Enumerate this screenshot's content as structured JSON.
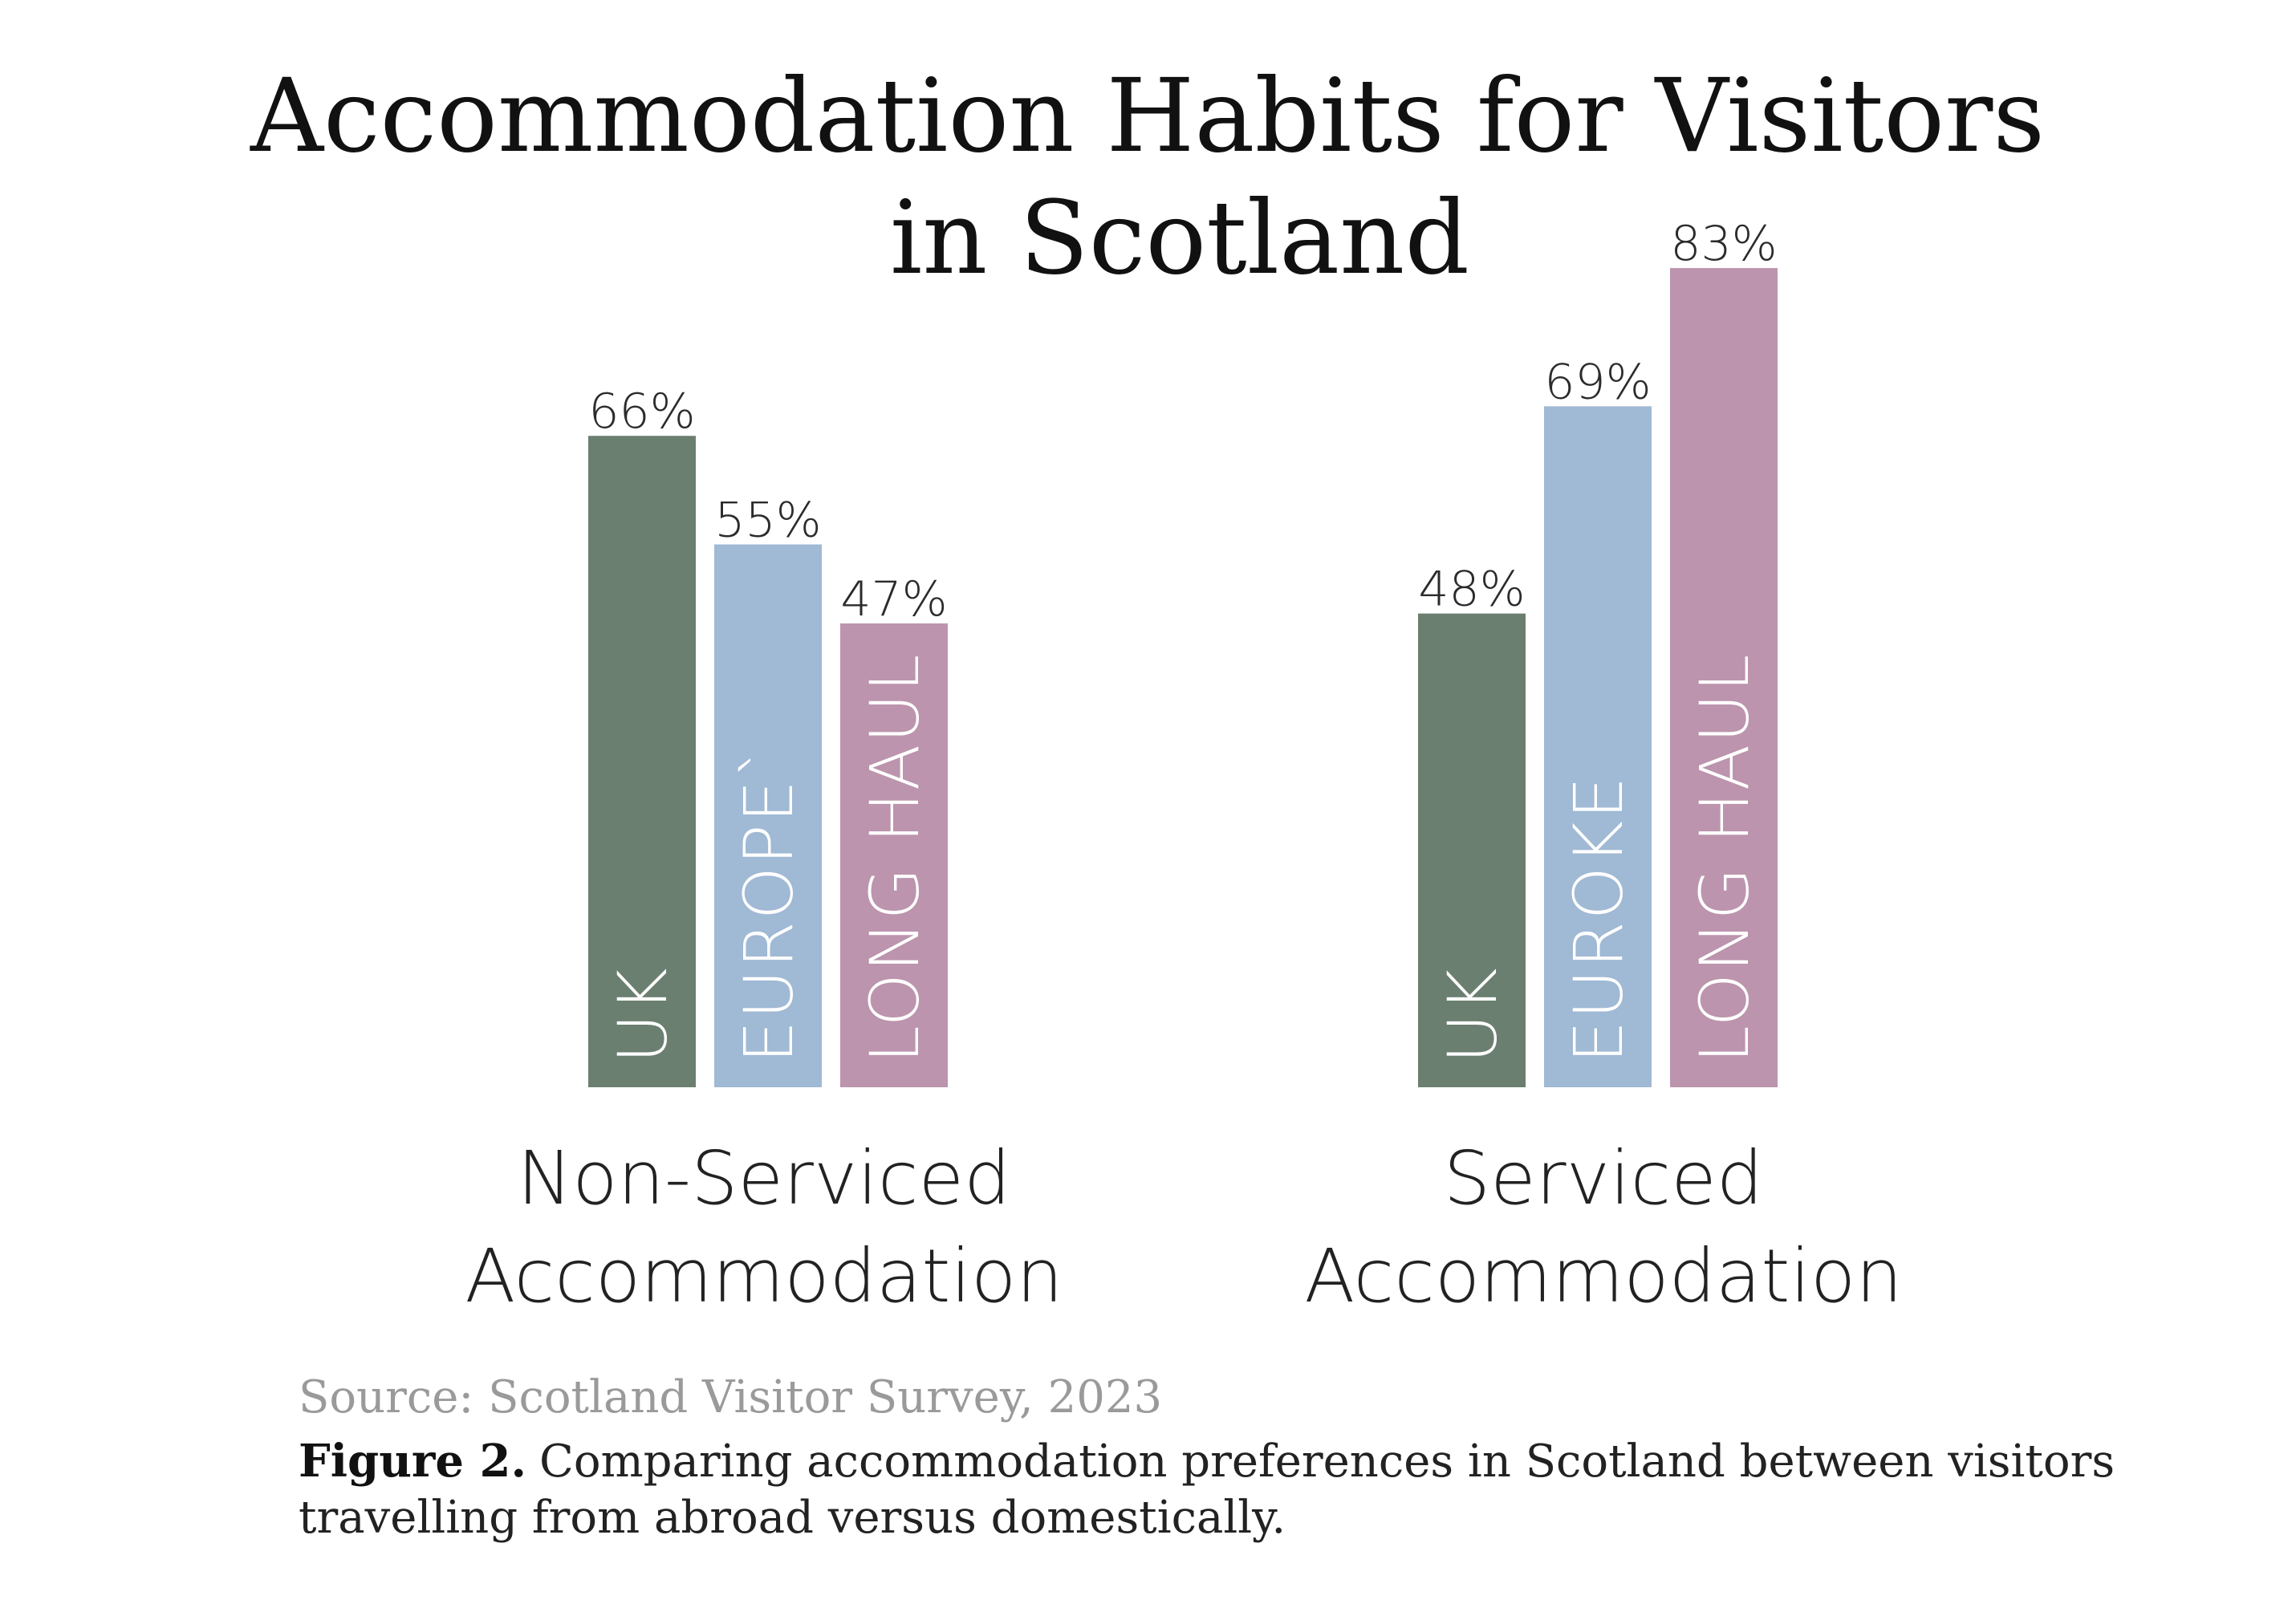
{
  "chart_data": {
    "type": "bar",
    "title_lines": [
      "Accommodation Habits for Visitors",
      "in Scotland"
    ],
    "ylim": [
      0,
      100
    ],
    "grid": false,
    "groups": [
      {
        "label_lines": [
          "Non-Serviced",
          "Accommodation"
        ],
        "bars": [
          {
            "category": "UK",
            "value": 66,
            "value_label": "66%",
            "color": "#6b7f70"
          },
          {
            "category": "EUROPE`",
            "value": 55,
            "value_label": "55%",
            "color": "#a0b9d4"
          },
          {
            "category": "LONG HAUL",
            "value": 47,
            "value_label": "47%",
            "color": "#bc94ad"
          }
        ]
      },
      {
        "label_lines": [
          "Serviced",
          "Accommodation"
        ],
        "bars": [
          {
            "category": "UK",
            "value": 48,
            "value_label": "48%",
            "color": "#6b7f70"
          },
          {
            "category": "EUROKE",
            "value": 69,
            "value_label": "69%",
            "color": "#a0b9d4"
          },
          {
            "category": "LONG HAUL",
            "value": 83,
            "value_label": "83%",
            "color": "#bc94ad"
          }
        ]
      }
    ]
  },
  "source": "Source: Scotland Visitor Survey, 2023",
  "caption": {
    "label": "Figure 2.",
    "line1": "Comparing accommodation preferences in Scotland between visitors",
    "line2": "travelling from abroad versus domestically."
  }
}
